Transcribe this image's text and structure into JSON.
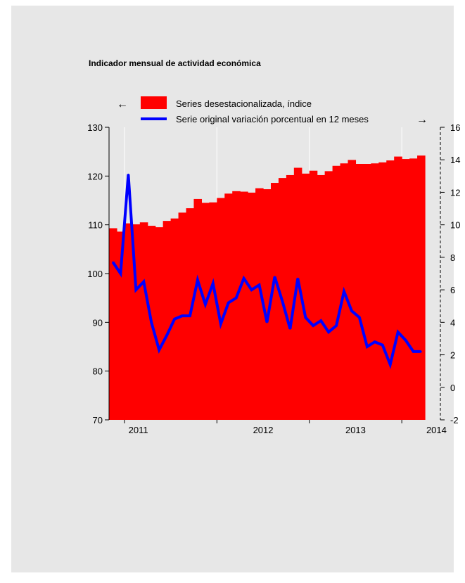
{
  "chart_data": {
    "type": "bar+line",
    "title": "Indicador mensual de actividad económica",
    "legend": {
      "placement": "top",
      "left_arrow": "←",
      "right_arrow": "→",
      "entries": [
        "Series desestacionalizada, índice",
        "Serie original variación porcentual en 12 meses"
      ]
    },
    "x_ticks": [
      "2011",
      "2012",
      "2013",
      "2014"
    ],
    "left_axis": {
      "ylim": [
        70,
        130
      ],
      "ticks": [
        "70",
        "80",
        "90",
        "100",
        "110",
        "120",
        "130"
      ]
    },
    "right_axis": {
      "ylim": [
        -2,
        16
      ],
      "ticks": [
        "-2",
        "0",
        "2",
        "4",
        "6",
        "8",
        "10",
        "12",
        "14",
        "16"
      ]
    },
    "months": [
      "2010-11",
      "2010-12",
      "2011-01",
      "2011-02",
      "2011-03",
      "2011-04",
      "2011-05",
      "2011-06",
      "2011-07",
      "2011-08",
      "2011-09",
      "2011-10",
      "2011-11",
      "2011-12",
      "2012-01",
      "2012-02",
      "2012-03",
      "2012-04",
      "2012-05",
      "2012-06",
      "2012-07",
      "2012-08",
      "2012-09",
      "2012-10",
      "2012-11",
      "2012-12",
      "2013-01",
      "2013-02",
      "2013-03",
      "2013-04",
      "2013-05",
      "2013-06",
      "2013-07",
      "2013-08",
      "2013-09",
      "2013-10",
      "2013-11",
      "2013-12",
      "2014-01",
      "2014-02",
      "2014-03"
    ],
    "series": [
      {
        "name": "Series desestacionalizada, índice",
        "axis": "left",
        "color": "#ff0000",
        "values": [
          109.3,
          108.6,
          110.3,
          110.1,
          110.5,
          109.8,
          109.5,
          110.8,
          111.3,
          112.5,
          113.4,
          115.3,
          114.5,
          114.6,
          115.5,
          116.4,
          116.9,
          116.8,
          116.6,
          117.5,
          117.3,
          118.6,
          119.6,
          120.2,
          121.7,
          120.5,
          121.1,
          120.2,
          121.0,
          122.1,
          122.6,
          123.3,
          122.5,
          122.5,
          122.6,
          122.8,
          123.2,
          124.0,
          123.5,
          123.6,
          124.2
        ]
      },
      {
        "name": "Serie original variación porcentual en 12 meses",
        "axis": "right",
        "color": "#0000ff",
        "values": [
          7.7,
          7.0,
          13.1,
          6.0,
          6.5,
          4.0,
          2.3,
          3.2,
          4.2,
          4.4,
          4.4,
          6.6,
          5.1,
          6.4,
          3.9,
          5.2,
          5.5,
          6.7,
          6.0,
          6.3,
          4.0,
          6.8,
          5.3,
          3.6,
          6.7,
          4.3,
          3.8,
          4.1,
          3.4,
          3.8,
          5.9,
          4.7,
          4.3,
          2.5,
          2.8,
          2.6,
          1.4,
          3.4,
          2.9,
          2.2,
          2.2
        ]
      }
    ],
    "grid": "vertical"
  }
}
